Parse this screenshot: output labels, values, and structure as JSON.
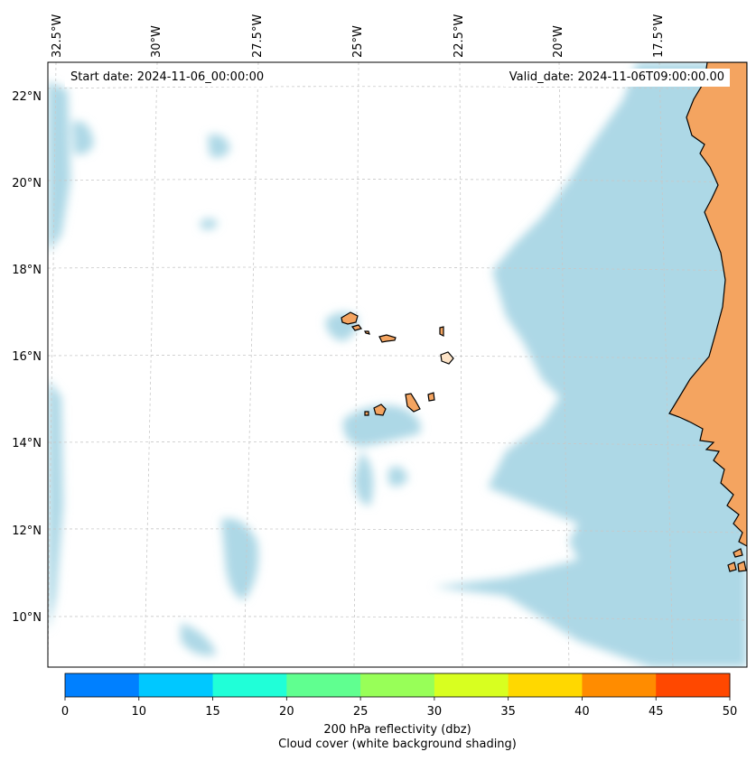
{
  "map": {
    "start_date_label": "Start date: 2024-11-06_00:00:00",
    "valid_date_label": "Valid_date: 2024-11-06T09:00:00.00",
    "lon_labels": [
      "32.5°W",
      "30°W",
      "27.5°W",
      "25°W",
      "22.5°W",
      "20°W",
      "17.5°W"
    ],
    "lat_labels": [
      "22°N",
      "20°N",
      "18°N",
      "16°N",
      "14°N",
      "12°N",
      "10°N"
    ],
    "land_color": "#f4a460",
    "cloud_color": "#add8e6",
    "gridlines": true
  },
  "colorbar": {
    "ticks": [
      "0",
      "10",
      "15",
      "20",
      "25",
      "30",
      "35",
      "40",
      "45",
      "50"
    ],
    "colors": [
      "#0080ff",
      "#00c8ff",
      "#20ffd8",
      "#60ff90",
      "#98ff58",
      "#d8ff20",
      "#ffd800",
      "#ff8c00",
      "#ff4800"
    ],
    "label_line1": "200 hPa reflectivity (dbz)",
    "label_line2": "Cloud cover (white background shading)"
  }
}
